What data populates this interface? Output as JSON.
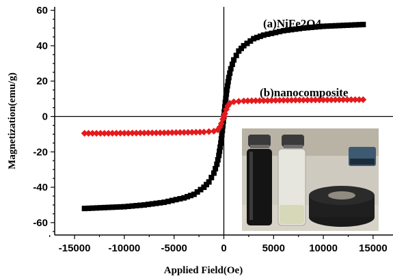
{
  "chart_data": {
    "type": "line",
    "xlabel": "Applied Field(Oe)",
    "ylabel": "Magnetization(emu/g)",
    "xlim": [
      -17000,
      17000
    ],
    "ylim": [
      -67,
      62
    ],
    "xticks": [
      -15000,
      -10000,
      -5000,
      0,
      5000,
      10000,
      15000
    ],
    "yticks": [
      -60,
      -40,
      -20,
      0,
      20,
      40,
      60
    ],
    "grid": false,
    "legend": "none",
    "annotations": [
      "(a)NiFe2O4",
      "(b)nanocomposite"
    ],
    "series": [
      {
        "name": "(a)NiFe2O4",
        "color": "#000000",
        "marker": "square",
        "x": [
          -14000,
          -12000,
          -10000,
          -8000,
          -6000,
          -4000,
          -3000,
          -2000,
          -1500,
          -1000,
          -700,
          -500,
          -300,
          -150,
          0,
          150,
          300,
          500,
          700,
          1000,
          1500,
          2000,
          3000,
          4000,
          6000,
          8000,
          10000,
          12000,
          14000
        ],
        "y": [
          -52,
          -51.5,
          -51,
          -50,
          -48.5,
          -46,
          -44,
          -40,
          -37,
          -32,
          -27,
          -22,
          -15,
          -8,
          0,
          8,
          15,
          22,
          27,
          32,
          37,
          40,
          44,
          46,
          48.5,
          50,
          51,
          51.5,
          52
        ]
      },
      {
        "name": "(b)nanocomposite",
        "color": "#e41a1c",
        "marker": "diamond",
        "x": [
          -14000,
          -12000,
          -10000,
          -8000,
          -6000,
          -4000,
          -2000,
          -1000,
          -600,
          -400,
          -250,
          -100,
          0,
          100,
          250,
          400,
          600,
          1000,
          2000,
          4000,
          6000,
          8000,
          10000,
          12000,
          14000
        ],
        "y": [
          -9.5,
          -9.5,
          -9.4,
          -9.3,
          -9.2,
          -9.0,
          -8.8,
          -8.3,
          -7.5,
          -6.0,
          -4.0,
          -1.5,
          0,
          1.5,
          4.0,
          6.0,
          7.5,
          8.3,
          8.8,
          9.0,
          9.2,
          9.3,
          9.4,
          9.5,
          9.5
        ]
      }
    ],
    "inset": "photograph of two vials (black suspension and clear liquid) beside a ring magnet"
  }
}
